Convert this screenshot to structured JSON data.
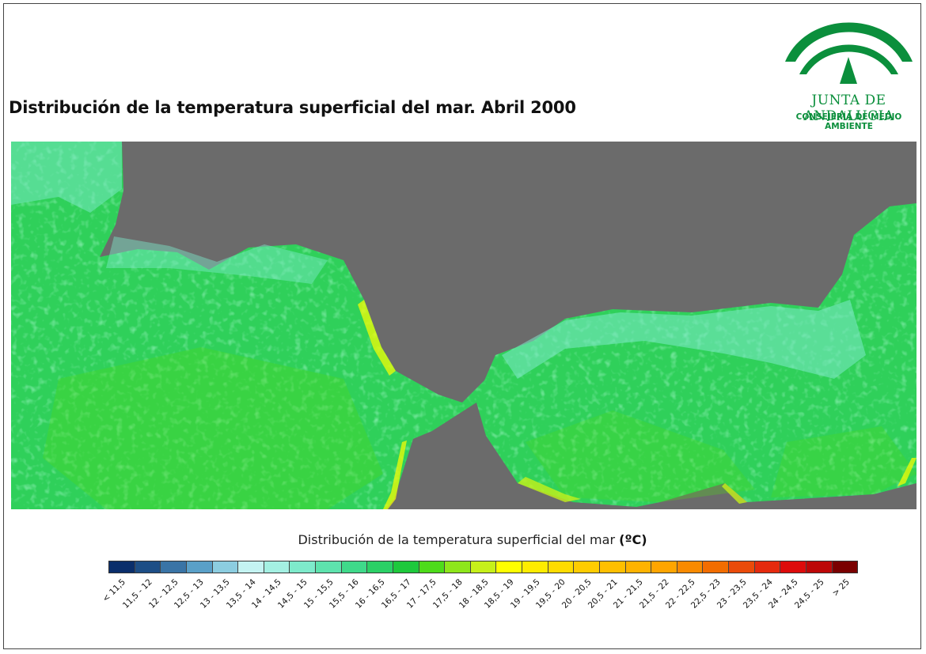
{
  "title": "Distribución de la temperatura superficial del mar. Abril 2000",
  "logo": {
    "name": "JUNTA DE ANDALUCIA",
    "subtitle": "CONSEJERÍA DE MEDIO AMBIENTE",
    "color": "#0b8f3c"
  },
  "map": {
    "land_color": "#6b6b6b",
    "dominant_sea_color": "#2fd05a"
  },
  "legend": {
    "title": "Distribución de la temperatura superficial del mar",
    "unit": "(ºC)",
    "classes": [
      {
        "label": "< 11,5",
        "color": "#0a2e6b"
      },
      {
        "label": "11,5 - 12",
        "color": "#1d4e86"
      },
      {
        "label": "12 - 12,5",
        "color": "#3a74a6"
      },
      {
        "label": "12,5 - 13",
        "color": "#5aa0c8"
      },
      {
        "label": "13 - 13,5",
        "color": "#8ccde0"
      },
      {
        "label": "13,5 - 14",
        "color": "#c4f3f2"
      },
      {
        "label": "14 - 14,5",
        "color": "#a4f0e2"
      },
      {
        "label": "14,5 - 15",
        "color": "#7eeacb"
      },
      {
        "label": "15 - 15,5",
        "color": "#5ee2ad"
      },
      {
        "label": "15,5 - 16",
        "color": "#3fd98a"
      },
      {
        "label": "16 - 16,5",
        "color": "#2bd066"
      },
      {
        "label": "16,5 - 17",
        "color": "#1ec93c"
      },
      {
        "label": "17 - 17,5",
        "color": "#4edb1a"
      },
      {
        "label": "17,5 - 18",
        "color": "#8ee61b"
      },
      {
        "label": "18 - 18,5",
        "color": "#c6f01a"
      },
      {
        "label": "18,5 - 19",
        "color": "#ffff00"
      },
      {
        "label": "19 - 19,5",
        "color": "#ffec00"
      },
      {
        "label": "19,5 - 20",
        "color": "#ffdc00"
      },
      {
        "label": "20 - 20,5",
        "color": "#ffcc00"
      },
      {
        "label": "20,5 - 21",
        "color": "#ffbf00"
      },
      {
        "label": "21 - 21,5",
        "color": "#ffb300"
      },
      {
        "label": "21,5 - 22",
        "color": "#ffa500"
      },
      {
        "label": "22 - 22,5",
        "color": "#f98a00"
      },
      {
        "label": "22,5 - 23",
        "color": "#f26d00"
      },
      {
        "label": "23 - 23,5",
        "color": "#ea4b0a"
      },
      {
        "label": "23,5 - 24",
        "color": "#e52a0e"
      },
      {
        "label": "24 - 24,5",
        "color": "#dd0b0b"
      },
      {
        "label": "24,5 - 25",
        "color": "#bd0707"
      },
      {
        "label": "> 25",
        "color": "#7a0000"
      }
    ]
  }
}
